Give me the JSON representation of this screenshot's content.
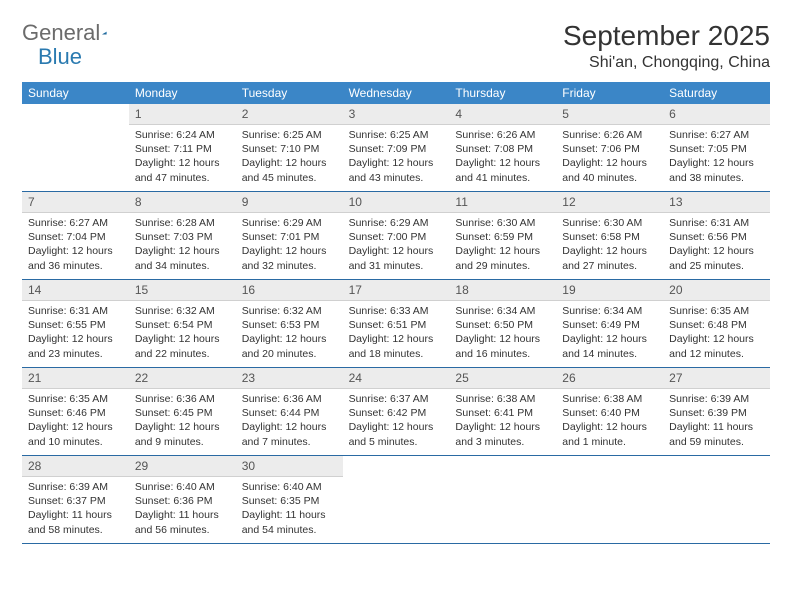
{
  "logo": {
    "word1": "General",
    "word2": "Blue"
  },
  "title": "September 2025",
  "location": "Shi'an, Chongqing, China",
  "colors": {
    "header_bg": "#3b86c7",
    "header_text": "#ffffff",
    "daynum_bg": "#ececec",
    "week_divider": "#2a6aa3",
    "logo_gray": "#6b6b6b",
    "logo_blue": "#2a7ab0",
    "body_text": "#333333"
  },
  "dow": [
    "Sunday",
    "Monday",
    "Tuesday",
    "Wednesday",
    "Thursday",
    "Friday",
    "Saturday"
  ],
  "weeks": [
    [
      null,
      {
        "num": "1",
        "sunrise": "6:24 AM",
        "sunset": "7:11 PM",
        "daylight": "12 hours and 47 minutes."
      },
      {
        "num": "2",
        "sunrise": "6:25 AM",
        "sunset": "7:10 PM",
        "daylight": "12 hours and 45 minutes."
      },
      {
        "num": "3",
        "sunrise": "6:25 AM",
        "sunset": "7:09 PM",
        "daylight": "12 hours and 43 minutes."
      },
      {
        "num": "4",
        "sunrise": "6:26 AM",
        "sunset": "7:08 PM",
        "daylight": "12 hours and 41 minutes."
      },
      {
        "num": "5",
        "sunrise": "6:26 AM",
        "sunset": "7:06 PM",
        "daylight": "12 hours and 40 minutes."
      },
      {
        "num": "6",
        "sunrise": "6:27 AM",
        "sunset": "7:05 PM",
        "daylight": "12 hours and 38 minutes."
      }
    ],
    [
      {
        "num": "7",
        "sunrise": "6:27 AM",
        "sunset": "7:04 PM",
        "daylight": "12 hours and 36 minutes."
      },
      {
        "num": "8",
        "sunrise": "6:28 AM",
        "sunset": "7:03 PM",
        "daylight": "12 hours and 34 minutes."
      },
      {
        "num": "9",
        "sunrise": "6:29 AM",
        "sunset": "7:01 PM",
        "daylight": "12 hours and 32 minutes."
      },
      {
        "num": "10",
        "sunrise": "6:29 AM",
        "sunset": "7:00 PM",
        "daylight": "12 hours and 31 minutes."
      },
      {
        "num": "11",
        "sunrise": "6:30 AM",
        "sunset": "6:59 PM",
        "daylight": "12 hours and 29 minutes."
      },
      {
        "num": "12",
        "sunrise": "6:30 AM",
        "sunset": "6:58 PM",
        "daylight": "12 hours and 27 minutes."
      },
      {
        "num": "13",
        "sunrise": "6:31 AM",
        "sunset": "6:56 PM",
        "daylight": "12 hours and 25 minutes."
      }
    ],
    [
      {
        "num": "14",
        "sunrise": "6:31 AM",
        "sunset": "6:55 PM",
        "daylight": "12 hours and 23 minutes."
      },
      {
        "num": "15",
        "sunrise": "6:32 AM",
        "sunset": "6:54 PM",
        "daylight": "12 hours and 22 minutes."
      },
      {
        "num": "16",
        "sunrise": "6:32 AM",
        "sunset": "6:53 PM",
        "daylight": "12 hours and 20 minutes."
      },
      {
        "num": "17",
        "sunrise": "6:33 AM",
        "sunset": "6:51 PM",
        "daylight": "12 hours and 18 minutes."
      },
      {
        "num": "18",
        "sunrise": "6:34 AM",
        "sunset": "6:50 PM",
        "daylight": "12 hours and 16 minutes."
      },
      {
        "num": "19",
        "sunrise": "6:34 AM",
        "sunset": "6:49 PM",
        "daylight": "12 hours and 14 minutes."
      },
      {
        "num": "20",
        "sunrise": "6:35 AM",
        "sunset": "6:48 PM",
        "daylight": "12 hours and 12 minutes."
      }
    ],
    [
      {
        "num": "21",
        "sunrise": "6:35 AM",
        "sunset": "6:46 PM",
        "daylight": "12 hours and 10 minutes."
      },
      {
        "num": "22",
        "sunrise": "6:36 AM",
        "sunset": "6:45 PM",
        "daylight": "12 hours and 9 minutes."
      },
      {
        "num": "23",
        "sunrise": "6:36 AM",
        "sunset": "6:44 PM",
        "daylight": "12 hours and 7 minutes."
      },
      {
        "num": "24",
        "sunrise": "6:37 AM",
        "sunset": "6:42 PM",
        "daylight": "12 hours and 5 minutes."
      },
      {
        "num": "25",
        "sunrise": "6:38 AM",
        "sunset": "6:41 PM",
        "daylight": "12 hours and 3 minutes."
      },
      {
        "num": "26",
        "sunrise": "6:38 AM",
        "sunset": "6:40 PM",
        "daylight": "12 hours and 1 minute."
      },
      {
        "num": "27",
        "sunrise": "6:39 AM",
        "sunset": "6:39 PM",
        "daylight": "11 hours and 59 minutes."
      }
    ],
    [
      {
        "num": "28",
        "sunrise": "6:39 AM",
        "sunset": "6:37 PM",
        "daylight": "11 hours and 58 minutes."
      },
      {
        "num": "29",
        "sunrise": "6:40 AM",
        "sunset": "6:36 PM",
        "daylight": "11 hours and 56 minutes."
      },
      {
        "num": "30",
        "sunrise": "6:40 AM",
        "sunset": "6:35 PM",
        "daylight": "11 hours and 54 minutes."
      },
      null,
      null,
      null,
      null
    ]
  ],
  "labels": {
    "sunrise": "Sunrise: ",
    "sunset": "Sunset: ",
    "daylight": "Daylight: "
  }
}
